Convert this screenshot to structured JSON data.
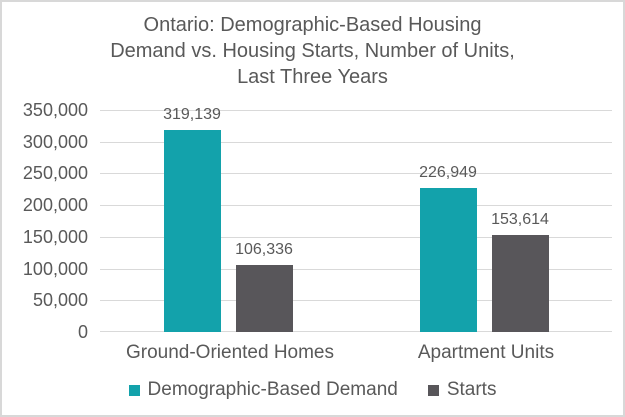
{
  "title_lines": [
    "Ontario: Demographic-Based Housing",
    "Demand vs. Housing Starts, Number of Units,",
    "Last Three Years"
  ],
  "chart_data": {
    "type": "bar",
    "title": "Ontario: Demographic-Based Housing Demand vs. Housing Starts, Number of Units, Last Three Years",
    "categories": [
      "Ground-Oriented Homes",
      "Apartment Units"
    ],
    "series": [
      {
        "name": "Demographic-Based Demand",
        "color": "#13a2ab",
        "values": [
          319139,
          226949
        ],
        "labels": [
          "319,139",
          "226,949"
        ]
      },
      {
        "name": "Starts",
        "color": "#58565a",
        "values": [
          106336,
          153614
        ],
        "labels": [
          "106,336",
          "153,614"
        ]
      }
    ],
    "y_axis": {
      "min": 0,
      "max": 350000,
      "step": 50000,
      "tick_labels": [
        "0",
        "50,000",
        "100,000",
        "150,000",
        "200,000",
        "250,000",
        "300,000",
        "350,000"
      ]
    },
    "grid": true,
    "legend_position": "bottom"
  },
  "colors": {
    "text": "#595959",
    "gridline": "#d9d9d9",
    "frame_border": "#d8d8d8",
    "demand_teal": "#13a2ab",
    "starts_gray": "#58565a"
  }
}
